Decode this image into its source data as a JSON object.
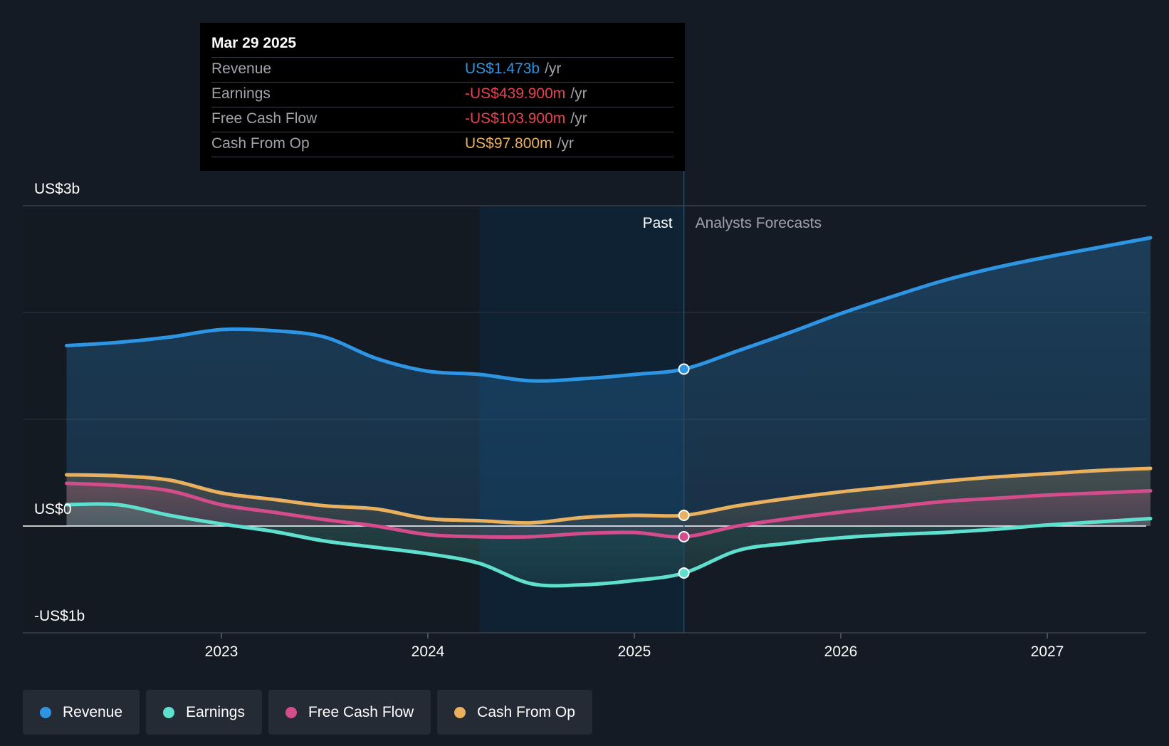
{
  "tooltip": {
    "date": "Mar 29 2025",
    "rows": [
      {
        "label": "Revenue",
        "value": "US$1.473b",
        "unit": "/yr",
        "color": "#2d95e3"
      },
      {
        "label": "Earnings",
        "value": "-US$439.900m",
        "unit": "/yr",
        "color": "#e8424e"
      },
      {
        "label": "Free Cash Flow",
        "value": "-US$103.900m",
        "unit": "/yr",
        "color": "#e8424e"
      },
      {
        "label": "Cash From Op",
        "value": "US$97.800m",
        "unit": "/yr",
        "color": "#e9b15f"
      }
    ]
  },
  "legend": [
    {
      "label": "Revenue",
      "color": "#2d95e3"
    },
    {
      "label": "Earnings",
      "color": "#5fe0cf"
    },
    {
      "label": "Free Cash Flow",
      "color": "#d34c8c"
    },
    {
      "label": "Cash From Op",
      "color": "#e9b15f"
    }
  ],
  "chart_data": {
    "type": "line",
    "y_tick_labels": [
      "US$3b",
      "US$0",
      "-US$1b"
    ],
    "x_tick_labels": [
      "2023",
      "2024",
      "2025",
      "2026",
      "2027"
    ],
    "x_ticks": [
      2023,
      2024,
      2025,
      2026,
      2027
    ],
    "ylim": [
      -1.0,
      3.0
    ],
    "xlim": [
      2022.0,
      2027.5
    ],
    "past_label": "Past",
    "forecast_label": "Analysts Forecasts",
    "highlight_start": 2024.25,
    "divider_x": 2025.24,
    "series": [
      {
        "name": "Revenue",
        "color": "#2d95e3",
        "x": [
          2022.25,
          2022.5,
          2022.75,
          2023.0,
          2023.25,
          2023.5,
          2023.75,
          2024.0,
          2024.25,
          2024.5,
          2024.75,
          2025.0,
          2025.24,
          2025.5,
          2025.75,
          2026.0,
          2026.25,
          2026.5,
          2026.75,
          2027.0,
          2027.25,
          2027.5
        ],
        "values": [
          1.69,
          1.72,
          1.77,
          1.84,
          1.83,
          1.77,
          1.57,
          1.45,
          1.42,
          1.36,
          1.38,
          1.42,
          1.47,
          1.64,
          1.81,
          1.99,
          2.15,
          2.3,
          2.42,
          2.52,
          2.61,
          2.7
        ]
      },
      {
        "name": "Earnings",
        "color": "#5fe0cf",
        "x": [
          2022.25,
          2022.5,
          2022.75,
          2023.0,
          2023.25,
          2023.5,
          2023.75,
          2024.0,
          2024.25,
          2024.5,
          2024.75,
          2025.0,
          2025.24,
          2025.5,
          2025.75,
          2026.0,
          2026.25,
          2026.5,
          2026.75,
          2027.0,
          2027.25,
          2027.5
        ],
        "values": [
          0.2,
          0.2,
          0.1,
          0.02,
          -0.05,
          -0.14,
          -0.2,
          -0.26,
          -0.35,
          -0.54,
          -0.55,
          -0.51,
          -0.44,
          -0.23,
          -0.16,
          -0.11,
          -0.08,
          -0.06,
          -0.03,
          0.01,
          0.04,
          0.07
        ]
      },
      {
        "name": "Free Cash Flow",
        "color": "#d34c8c",
        "x": [
          2022.25,
          2022.5,
          2022.75,
          2023.0,
          2023.25,
          2023.5,
          2023.75,
          2024.0,
          2024.25,
          2024.5,
          2024.75,
          2025.0,
          2025.24,
          2025.5,
          2025.75,
          2026.0,
          2026.25,
          2026.5,
          2026.75,
          2027.0,
          2027.25,
          2027.5
        ],
        "values": [
          0.4,
          0.38,
          0.33,
          0.2,
          0.13,
          0.06,
          0.0,
          -0.08,
          -0.1,
          -0.1,
          -0.07,
          -0.06,
          -0.1,
          0.0,
          0.07,
          0.13,
          0.18,
          0.23,
          0.26,
          0.29,
          0.31,
          0.33
        ]
      },
      {
        "name": "Cash From Op",
        "color": "#e9b15f",
        "x": [
          2022.25,
          2022.5,
          2022.75,
          2023.0,
          2023.25,
          2023.5,
          2023.75,
          2024.0,
          2024.25,
          2024.5,
          2024.75,
          2025.0,
          2025.24,
          2025.5,
          2025.75,
          2026.0,
          2026.25,
          2026.5,
          2026.75,
          2027.0,
          2027.25,
          2027.5
        ],
        "values": [
          0.48,
          0.47,
          0.43,
          0.31,
          0.25,
          0.19,
          0.16,
          0.07,
          0.05,
          0.03,
          0.08,
          0.1,
          0.1,
          0.19,
          0.26,
          0.32,
          0.37,
          0.42,
          0.46,
          0.49,
          0.52,
          0.54
        ]
      }
    ]
  }
}
